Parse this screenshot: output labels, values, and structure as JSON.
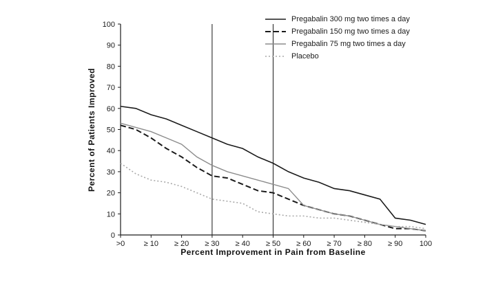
{
  "chart_data": {
    "type": "line",
    "title": "",
    "xlabel": "Percent Improvement in Pain from Baseline",
    "ylabel": "Percent of Patients Improved",
    "xlim": [
      0,
      100
    ],
    "ylim": [
      0,
      100
    ],
    "grid": false,
    "legend_position": "top-right",
    "x_tick_values": [
      0,
      10,
      20,
      30,
      40,
      50,
      60,
      70,
      80,
      90,
      100
    ],
    "x_tick_labels": [
      ">0",
      "≥ 10",
      "≥ 20",
      "≥ 30",
      "≥ 40",
      "≥ 50",
      "≥ 60",
      "≥ 70",
      "≥ 80",
      "≥ 90",
      "100"
    ],
    "y_tick_values": [
      0,
      10,
      20,
      30,
      40,
      50,
      60,
      70,
      80,
      90,
      100
    ],
    "reference_lines_x": [
      30,
      50
    ],
    "x": [
      0,
      5,
      10,
      15,
      20,
      25,
      30,
      35,
      40,
      45,
      50,
      55,
      60,
      65,
      70,
      75,
      80,
      85,
      90,
      95,
      100
    ],
    "series": [
      {
        "name": "Pregabalin 300 mg two times a day",
        "color": "#1a1a1a",
        "dash": "",
        "width": 1.6,
        "values": [
          61,
          60,
          57,
          55,
          52,
          49,
          46,
          43,
          41,
          37,
          34,
          30,
          27,
          25,
          22,
          21,
          19,
          17,
          8,
          7,
          5
        ]
      },
      {
        "name": "Pregabalin 150 mg two times a day",
        "color": "#1a1a1a",
        "dash": "8 4",
        "width": 2,
        "values": [
          52,
          50,
          46,
          41,
          37,
          32,
          28,
          27,
          24,
          21,
          20,
          17,
          14,
          12,
          10,
          9,
          7,
          5,
          3,
          3,
          2
        ]
      },
      {
        "name": "Pregabalin 75 mg two times a day",
        "color": "#8c8c8c",
        "dash": "",
        "width": 1.4,
        "values": [
          53,
          51,
          49,
          46,
          43,
          37,
          33,
          30,
          28,
          26,
          24,
          22,
          14,
          12,
          10,
          9,
          7,
          5,
          4,
          3,
          2
        ]
      },
      {
        "name": "Placebo",
        "color": "#a8a8a8",
        "dash": "2 3",
        "width": 1.6,
        "values": [
          34,
          29,
          26,
          25,
          23,
          20,
          17,
          16,
          15,
          11,
          10,
          9,
          9,
          8,
          8,
          7,
          6,
          5,
          4,
          4,
          3
        ]
      }
    ]
  }
}
